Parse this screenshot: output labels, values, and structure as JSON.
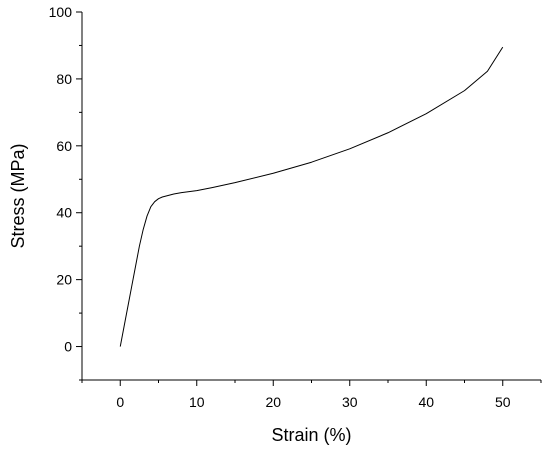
{
  "chart_data": {
    "type": "line",
    "xlabel": "Strain (%)",
    "ylabel": "Stress (MPa)",
    "xlim": [
      -5,
      55
    ],
    "ylim": [
      -10,
      100
    ],
    "xticks": [
      0,
      10,
      20,
      30,
      40,
      50
    ],
    "yticks": [
      0,
      20,
      40,
      60,
      80,
      100
    ],
    "grid": false,
    "series": [
      {
        "color": "#000000",
        "x": [
          0,
          0.5,
          1,
          1.5,
          2,
          2.5,
          3,
          3.5,
          4,
          4.5,
          5,
          5.5,
          6,
          7,
          8,
          10,
          12,
          15,
          20,
          25,
          30,
          35,
          40,
          45,
          48,
          50
        ],
        "y": [
          0,
          6,
          12,
          18,
          24,
          30,
          35,
          39,
          41.8,
          43.3,
          44.2,
          44.7,
          45.0,
          45.6,
          46.0,
          46.6,
          47.5,
          49.0,
          51.8,
          55.1,
          59.1,
          63.9,
          69.6,
          76.5,
          82.3,
          89.5
        ]
      }
    ]
  }
}
